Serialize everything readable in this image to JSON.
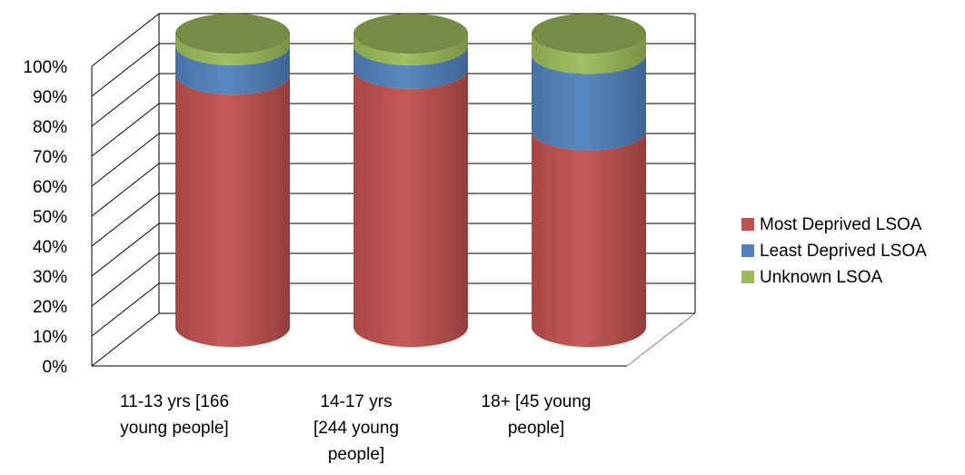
{
  "chart_data": {
    "type": "bar",
    "subtype": "stacked-100-percent-3d-cylinder",
    "title": "",
    "xlabel": "",
    "ylabel": "",
    "ylim": [
      0,
      100
    ],
    "yticks": [
      0,
      10,
      20,
      30,
      40,
      50,
      60,
      70,
      80,
      90,
      100
    ],
    "ytick_labels": [
      "0%",
      "10%",
      "20%",
      "30%",
      "40%",
      "50%",
      "60%",
      "70%",
      "80%",
      "90%",
      "100%"
    ],
    "grid": true,
    "legend_position": "right",
    "categories": [
      [
        "11-13 yrs [166",
        "young people]"
      ],
      [
        "14-17  yrs",
        "[244 young",
        "people]"
      ],
      [
        "18+ [45 young",
        "people]"
      ]
    ],
    "series": [
      {
        "name": "Most Deprived LSOA",
        "values": [
          86,
          88,
          67
        ],
        "color": "#c0504d"
      },
      {
        "name": "Least Deprived LSOA",
        "values": [
          10,
          8,
          26
        ],
        "color": "#4f81bd"
      },
      {
        "name": "Unknown LSOA",
        "values": [
          4,
          4,
          7
        ],
        "color": "#9bbb59"
      }
    ]
  }
}
